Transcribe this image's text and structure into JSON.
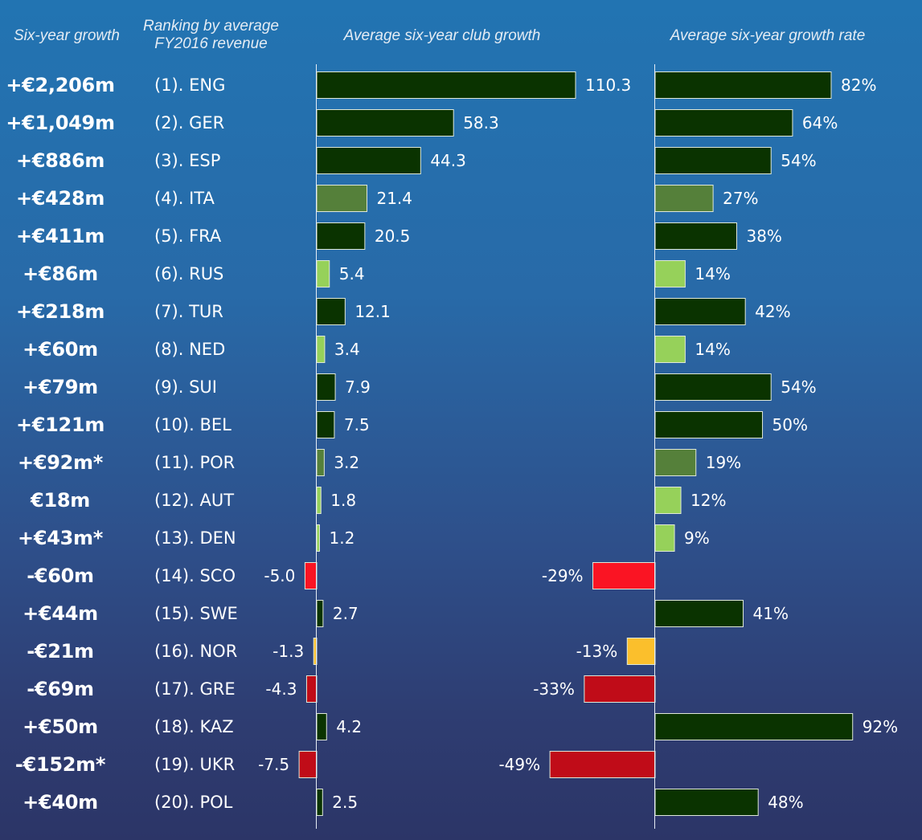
{
  "headers": {
    "growth": "Six-year growth",
    "rank": "Ranking by average FY2016 revenue",
    "club": "Average six-year club growth",
    "rate": "Average six-year growth rate"
  },
  "colors": {
    "dark_green": "#0a3300",
    "mid_green": "#55803a",
    "light_green": "#96d15a",
    "red": "#fa1423",
    "dark_red": "#c00c18",
    "amber": "#fbbf2c"
  },
  "chart_data": [
    {
      "type": "bar",
      "orientation": "horizontal",
      "title": "Average six-year club growth",
      "categories": [
        "(1). ENG",
        "(2). GER",
        "(3). ESP",
        "(4). ITA",
        "(5). FRA",
        "(6). RUS",
        "(7). TUR",
        "(8). NED",
        "(9). SUI",
        "(10). BEL",
        "(11). POR",
        "(12). AUT",
        "(13). DEN",
        "(14). SCO",
        "(15). SWE",
        "(16). NOR",
        "(17). GRE",
        "(18). KAZ",
        "(19). UKR",
        "(20). POL"
      ],
      "values": [
        110.3,
        58.3,
        44.3,
        21.4,
        20.5,
        5.4,
        12.1,
        3.4,
        7.9,
        7.5,
        3.2,
        1.8,
        1.2,
        -5.0,
        2.7,
        -1.3,
        -4.3,
        4.2,
        -7.5,
        2.5
      ],
      "labels": [
        "110.3",
        "58.3",
        "44.3",
        "21.4",
        "20.5",
        "5.4",
        "12.1",
        "3.4",
        "7.9",
        "7.5",
        "3.2",
        "1.8",
        "1.2",
        "-5.0",
        "2.7",
        "-1.3",
        "-4.3",
        "4.2",
        "-7.5",
        "2.5"
      ],
      "colors": [
        "dark_green",
        "dark_green",
        "dark_green",
        "mid_green",
        "dark_green",
        "light_green",
        "dark_green",
        "light_green",
        "dark_green",
        "dark_green",
        "mid_green",
        "light_green",
        "light_green",
        "red",
        "dark_green",
        "amber",
        "dark_red",
        "dark_green",
        "dark_red",
        "dark_green"
      ],
      "xlim": [
        -8,
        110.3
      ]
    },
    {
      "type": "bar",
      "orientation": "horizontal",
      "title": "Average six-year growth rate",
      "categories": [
        "(1). ENG",
        "(2). GER",
        "(3). ESP",
        "(4). ITA",
        "(5). FRA",
        "(6). RUS",
        "(7). TUR",
        "(8). NED",
        "(9). SUI",
        "(10). BEL",
        "(11). POR",
        "(12). AUT",
        "(13). DEN",
        "(14). SCO",
        "(15). SWE",
        "(16). NOR",
        "(17). GRE",
        "(18). KAZ",
        "(19). UKR",
        "(20). POL"
      ],
      "values": [
        82,
        64,
        54,
        27,
        38,
        14,
        42,
        14,
        54,
        50,
        19,
        12,
        9,
        -29,
        41,
        -13,
        -33,
        92,
        -49,
        48
      ],
      "labels": [
        "82%",
        "64%",
        "54%",
        "27%",
        "38%",
        "14%",
        "42%",
        "14%",
        "54%",
        "50%",
        "19%",
        "12%",
        "9%",
        "-29%",
        "41%",
        "-13%",
        "-33%",
        "92%",
        "-49%",
        "48%"
      ],
      "colors": [
        "dark_green",
        "dark_green",
        "dark_green",
        "mid_green",
        "dark_green",
        "light_green",
        "dark_green",
        "light_green",
        "dark_green",
        "dark_green",
        "mid_green",
        "light_green",
        "light_green",
        "red",
        "dark_green",
        "amber",
        "dark_red",
        "dark_green",
        "dark_red",
        "dark_green"
      ],
      "xlim": [
        -49,
        92
      ]
    }
  ],
  "rows": [
    {
      "growth": "+€2,206m",
      "rank": "(1). ENG"
    },
    {
      "growth": "+€1,049m",
      "rank": "(2). GER"
    },
    {
      "growth": "+€886m",
      "rank": "(3). ESP"
    },
    {
      "growth": "+€428m",
      "rank": "(4). ITA"
    },
    {
      "growth": "+€411m",
      "rank": "(5). FRA"
    },
    {
      "growth": "+€86m",
      "rank": "(6). RUS"
    },
    {
      "growth": "+€218m",
      "rank": "(7). TUR"
    },
    {
      "growth": "+€60m",
      "rank": "(8). NED"
    },
    {
      "growth": "+€79m",
      "rank": "(9). SUI"
    },
    {
      "growth": "+€121m",
      "rank": "(10). BEL"
    },
    {
      "growth": "+€92m*",
      "rank": "(11). POR"
    },
    {
      "growth": "€18m",
      "rank": "(12). AUT"
    },
    {
      "growth": "+€43m*",
      "rank": "(13). DEN"
    },
    {
      "growth": "-€60m",
      "rank": "(14). SCO"
    },
    {
      "growth": "+€44m",
      "rank": "(15). SWE"
    },
    {
      "growth": "-€21m",
      "rank": "(16). NOR"
    },
    {
      "growth": "-€69m",
      "rank": "(17). GRE"
    },
    {
      "growth": "+€50m",
      "rank": "(18). KAZ"
    },
    {
      "growth": "-€152m*",
      "rank": "(19). UKR"
    },
    {
      "growth": "+€40m",
      "rank": "(20). POL"
    }
  ]
}
